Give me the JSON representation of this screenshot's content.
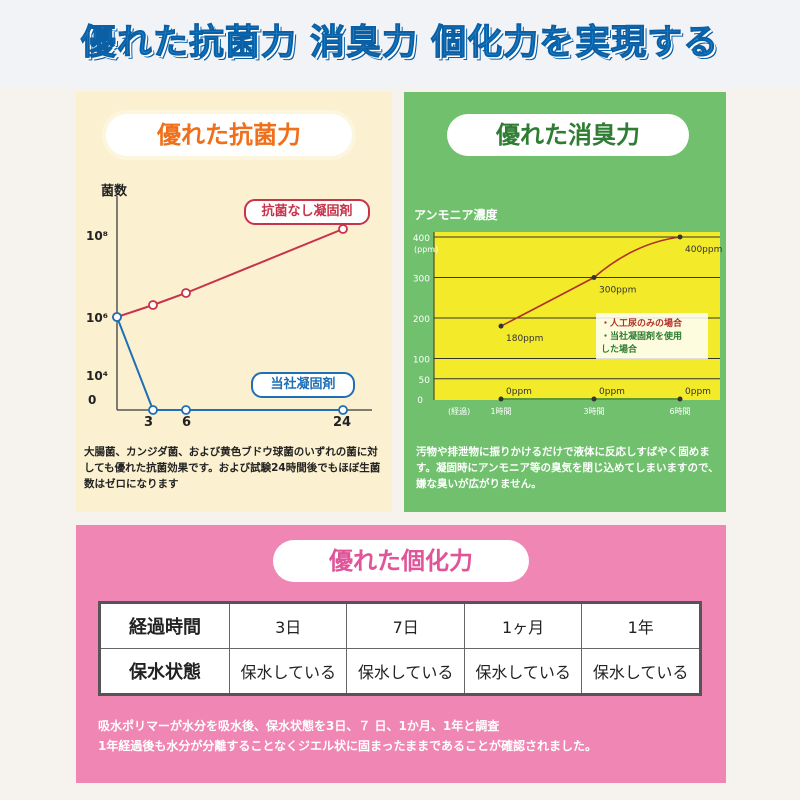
{
  "headline": "優れた抗菌力 消臭力 個化力を実現する",
  "antibacterial": {
    "title": "優れた抗菌力",
    "chart_data": {
      "type": "line",
      "ylabel": "菌数",
      "y_ticks": [
        "10⁸",
        "10⁶",
        "10⁴",
        "0"
      ],
      "x_ticks": [
        "3",
        "6",
        "24"
      ],
      "series": [
        {
          "name": "抗菌なし凝固剤",
          "color": "#c8324a",
          "x": [
            0,
            3,
            6,
            24
          ],
          "y_log10": [
            6,
            6.3,
            6.6,
            8.2
          ]
        },
        {
          "name": "当社凝固剤",
          "color": "#1e6fb6",
          "x": [
            0,
            3,
            6,
            24
          ],
          "y_log10": [
            6,
            0,
            0,
            0
          ]
        }
      ]
    },
    "description": "大腸菌、カンジダ菌、および黄色ブドウ球菌のいずれの菌に対しても優れた抗菌効果です。および試験24時間後でもほぼ生菌数はゼロになります"
  },
  "deodorant": {
    "title": "優れた消臭力",
    "chart_data": {
      "type": "line",
      "ylabel": "アンモニア濃度",
      "y_unit": "(ppm)",
      "y_ticks": [
        "400",
        "300",
        "200",
        "100",
        "50",
        "0"
      ],
      "x_axis_label": "(経過)",
      "x_ticks": [
        "1時間",
        "3時間",
        "6時間"
      ],
      "ylim": [
        0,
        400
      ],
      "series": [
        {
          "name": "人工尿のみの場合",
          "color": "#b0302a",
          "x": [
            1,
            3,
            6
          ],
          "y": [
            180,
            300,
            400
          ],
          "labels": [
            "180ppm",
            "300ppm",
            "400ppm"
          ]
        },
        {
          "name": "当社凝固剤を使用した場合",
          "color": "#2e7d32",
          "x": [
            1,
            3,
            6
          ],
          "y": [
            0,
            0,
            0
          ],
          "labels": [
            "0ppm",
            "0ppm",
            "0ppm"
          ]
        }
      ],
      "legend": [
        "・人工尿のみの場合",
        "・当社凝固剤を使用",
        "した場合"
      ]
    },
    "description": "汚物や排泄物に振りかけるだけで液体に反応しすばやく固めます。凝固時にアンモニア等の臭気を閉じ込めてしまいますので、嫌な臭いが広がりません。"
  },
  "gelation": {
    "title": "優れた個化力",
    "table": {
      "header": [
        "経過時間",
        "3日",
        "7日",
        "1ヶ月",
        "1年"
      ],
      "row": [
        "保水状態",
        "保水している",
        "保水している",
        "保水している",
        "保水している"
      ]
    },
    "description_line1": "吸水ポリマーが水分を吸水後、保水状態を3日、７ 日、1か月、1年と調査",
    "description_line2": "1年経過後も水分が分離することなくジエル状に固まったままであることが確認されました。"
  }
}
